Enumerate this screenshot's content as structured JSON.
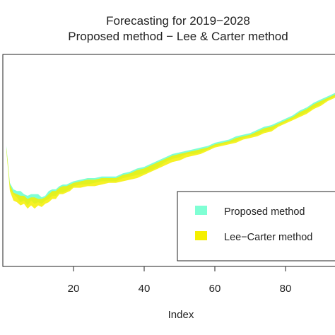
{
  "chart_data": {
    "type": "area",
    "title": "Forecasting for 2019−2028",
    "subtitle": "Proposed method − Lee & Carter method",
    "xlabel": "Index",
    "ylabel": "",
    "xlim": [
      0,
      94
    ],
    "ylim": [
      -0.36,
      0.96
    ],
    "xticks": [
      20,
      40,
      60,
      80
    ],
    "xtick_labels": [
      "20",
      "40",
      "60",
      "80"
    ],
    "grid": false,
    "legend": {
      "position": "center-right",
      "entries": [
        {
          "label": "Proposed method",
          "color": "#7fffd4"
        },
        {
          "label": "Lee−Carter method",
          "color": "#f5ef00"
        }
      ]
    },
    "series": [
      {
        "name": "Proposed method",
        "color": "#7fffd4",
        "x": [
          1,
          2,
          3,
          4,
          5,
          6,
          7,
          8,
          9,
          10,
          11,
          12,
          13,
          14,
          15,
          16,
          17,
          18,
          19,
          20,
          22,
          24,
          26,
          28,
          30,
          32,
          34,
          36,
          38,
          40,
          42,
          44,
          46,
          48,
          50,
          52,
          54,
          56,
          58,
          60,
          62,
          64,
          66,
          68,
          70,
          72,
          74,
          76,
          78,
          80,
          82,
          84,
          86,
          88,
          90,
          92,
          94
        ],
        "lower": [
          0.37,
          0.13,
          0.09,
          0.07,
          0.04,
          0.05,
          0.02,
          0.05,
          0.03,
          0.04,
          0.03,
          0.05,
          0.06,
          0.08,
          0.08,
          0.1,
          0.1,
          0.11,
          0.12,
          0.14,
          0.15,
          0.15,
          0.16,
          0.17,
          0.17,
          0.17,
          0.19,
          0.2,
          0.21,
          0.22,
          0.24,
          0.26,
          0.29,
          0.31,
          0.32,
          0.34,
          0.34,
          0.35,
          0.37,
          0.39,
          0.4,
          0.41,
          0.42,
          0.44,
          0.45,
          0.46,
          0.48,
          0.49,
          0.52,
          0.54,
          0.56,
          0.58,
          0.6,
          0.63,
          0.65,
          0.68,
          0.7
        ],
        "upper": [
          0.39,
          0.16,
          0.12,
          0.11,
          0.11,
          0.09,
          0.08,
          0.09,
          0.09,
          0.09,
          0.07,
          0.08,
          0.11,
          0.12,
          0.12,
          0.14,
          0.15,
          0.15,
          0.16,
          0.17,
          0.18,
          0.19,
          0.19,
          0.2,
          0.2,
          0.2,
          0.22,
          0.23,
          0.25,
          0.26,
          0.28,
          0.3,
          0.32,
          0.34,
          0.35,
          0.36,
          0.37,
          0.38,
          0.39,
          0.41,
          0.42,
          0.43,
          0.45,
          0.46,
          0.47,
          0.49,
          0.51,
          0.52,
          0.54,
          0.56,
          0.58,
          0.61,
          0.63,
          0.66,
          0.68,
          0.7,
          0.72
        ]
      },
      {
        "name": "Lee−Carter method",
        "color": "#f5ef00",
        "x": [
          1,
          2,
          3,
          4,
          5,
          6,
          7,
          8,
          9,
          10,
          11,
          12,
          13,
          14,
          15,
          16,
          17,
          18,
          19,
          20,
          22,
          24,
          26,
          28,
          30,
          32,
          34,
          36,
          38,
          40,
          42,
          44,
          46,
          48,
          50,
          52,
          54,
          56,
          58,
          60,
          62,
          64,
          66,
          68,
          70,
          72,
          74,
          76,
          78,
          80,
          82,
          84,
          86,
          88,
          90,
          92,
          94
        ],
        "lower": [
          0.36,
          0.11,
          0.05,
          0.04,
          0.02,
          0.03,
          0.0,
          0.02,
          0.0,
          0.02,
          0.01,
          0.03,
          0.04,
          0.06,
          0.06,
          0.09,
          0.09,
          0.1,
          0.11,
          0.13,
          0.13,
          0.14,
          0.14,
          0.15,
          0.16,
          0.16,
          0.17,
          0.18,
          0.19,
          0.21,
          0.23,
          0.25,
          0.27,
          0.29,
          0.3,
          0.32,
          0.33,
          0.34,
          0.36,
          0.38,
          0.39,
          0.4,
          0.41,
          0.43,
          0.44,
          0.45,
          0.47,
          0.48,
          0.51,
          0.53,
          0.55,
          0.57,
          0.59,
          0.62,
          0.64,
          0.67,
          0.69
        ],
        "upper": [
          0.38,
          0.15,
          0.1,
          0.09,
          0.08,
          0.08,
          0.06,
          0.07,
          0.07,
          0.06,
          0.06,
          0.07,
          0.09,
          0.11,
          0.11,
          0.13,
          0.14,
          0.14,
          0.15,
          0.16,
          0.17,
          0.18,
          0.18,
          0.19,
          0.19,
          0.19,
          0.21,
          0.22,
          0.24,
          0.25,
          0.27,
          0.29,
          0.31,
          0.33,
          0.34,
          0.35,
          0.36,
          0.37,
          0.38,
          0.4,
          0.41,
          0.42,
          0.44,
          0.45,
          0.46,
          0.48,
          0.5,
          0.51,
          0.53,
          0.55,
          0.57,
          0.6,
          0.62,
          0.65,
          0.67,
          0.69,
          0.71
        ]
      }
    ]
  }
}
